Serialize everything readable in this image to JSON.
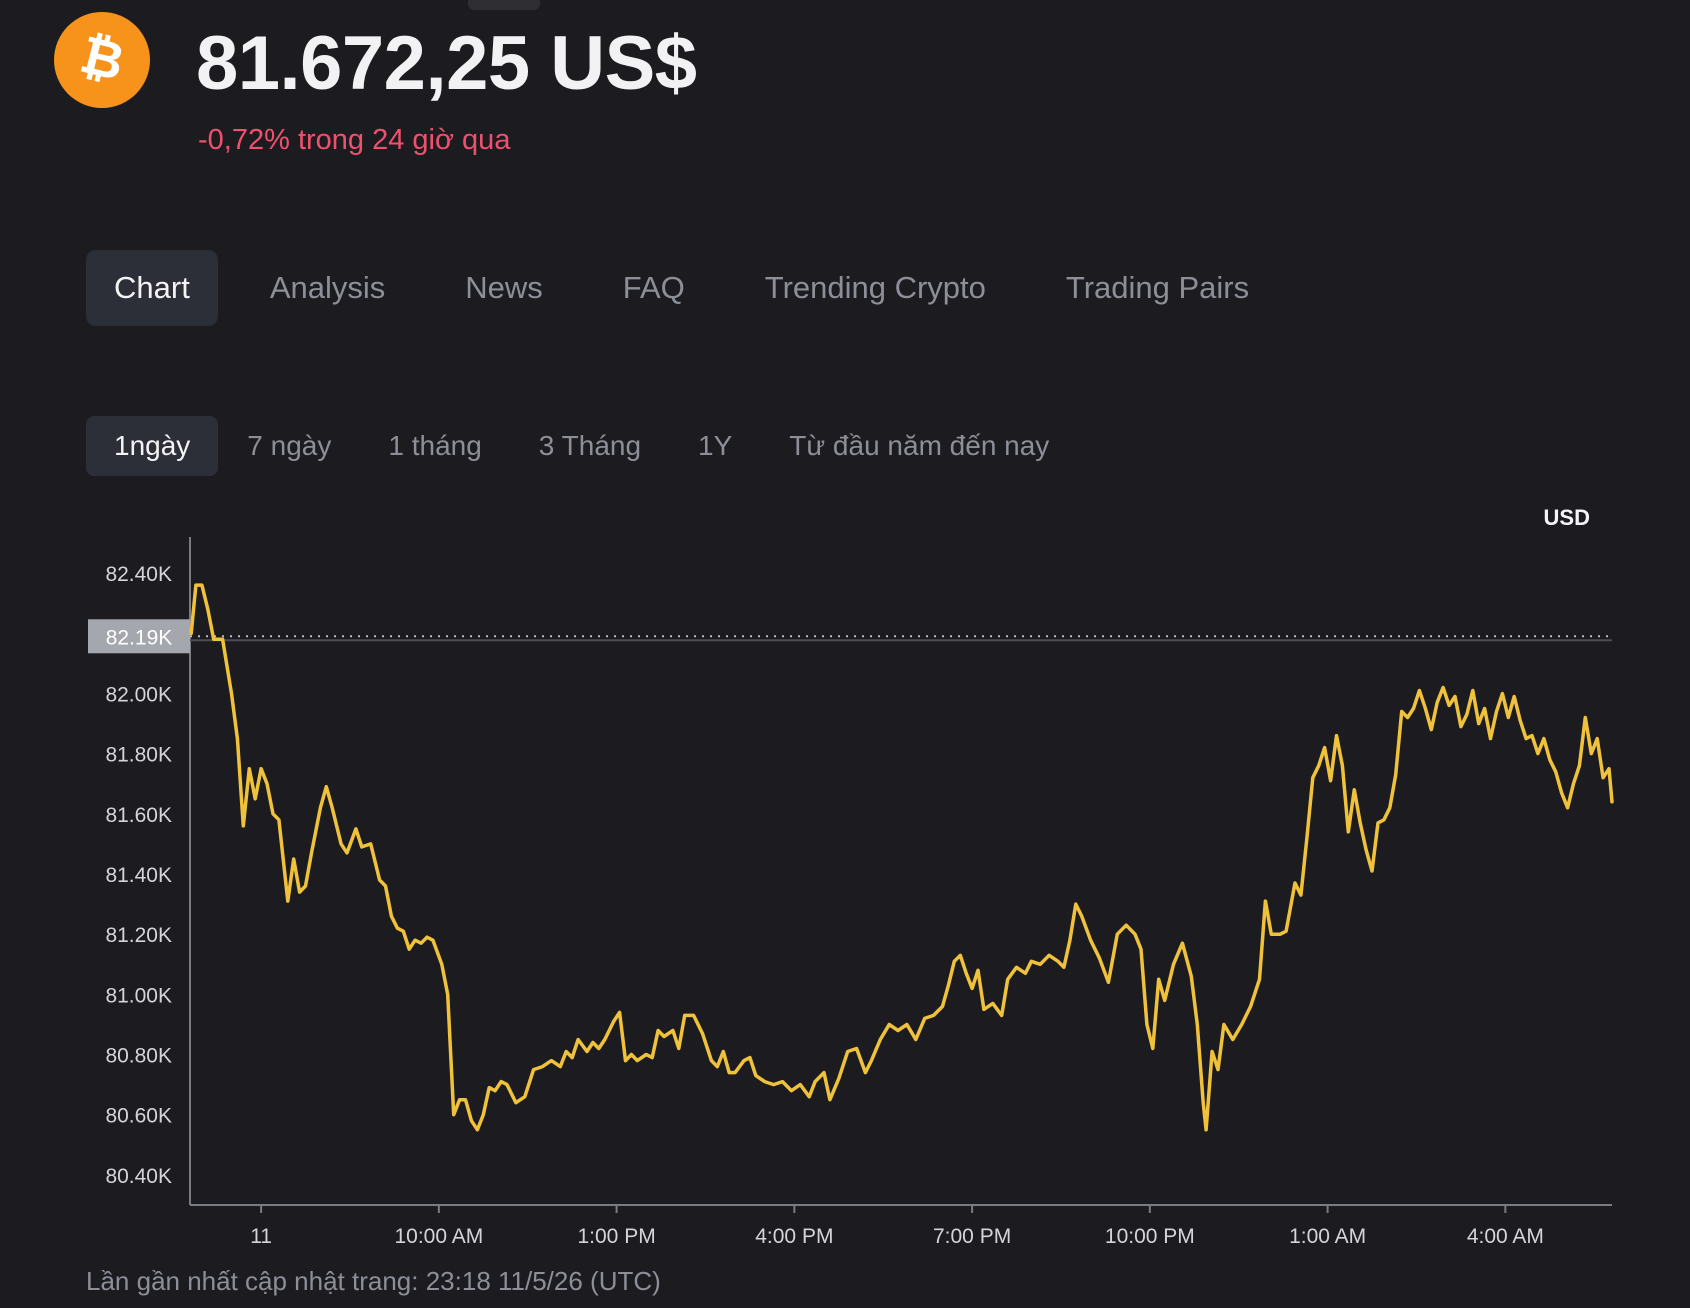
{
  "coin": {
    "logo_icon": "bitcoin-icon",
    "logo_color": "#f7931a",
    "price": "81.672,25 US$",
    "change": "-0,72% trong 24 giờ qua",
    "change_color": "#f0506e"
  },
  "tabs": [
    {
      "label": "Chart",
      "active": true
    },
    {
      "label": "Analysis",
      "active": false
    },
    {
      "label": "News",
      "active": false
    },
    {
      "label": "FAQ",
      "active": false
    },
    {
      "label": "Trending Crypto",
      "active": false
    },
    {
      "label": "Trading Pairs",
      "active": false
    }
  ],
  "ranges": [
    {
      "label": "1ngày",
      "active": true
    },
    {
      "label": "7 ngày",
      "active": false
    },
    {
      "label": "1 tháng",
      "active": false
    },
    {
      "label": "3 Tháng",
      "active": false
    },
    {
      "label": "1Y",
      "active": false
    },
    {
      "label": "Từ đầu năm đến nay",
      "active": false
    }
  ],
  "chart_data": {
    "type": "line",
    "currency_label": "USD",
    "line_color": "#f0c23c",
    "reference_value": 82190,
    "reference_label": "82.19K",
    "ylim": [
      80300,
      82520
    ],
    "y_ticks": [
      {
        "value": 82400,
        "label": "82.40K"
      },
      {
        "value": 82000,
        "label": "82.00K"
      },
      {
        "value": 81800,
        "label": "81.80K"
      },
      {
        "value": 81600,
        "label": "81.60K"
      },
      {
        "value": 81400,
        "label": "81.40K"
      },
      {
        "value": 81200,
        "label": "81.20K"
      },
      {
        "value": 81000,
        "label": "81.00K"
      },
      {
        "value": 80800,
        "label": "80.80K"
      },
      {
        "value": 80600,
        "label": "80.60K"
      },
      {
        "value": 80400,
        "label": "80.40K"
      }
    ],
    "x_start_hour": 5.8,
    "x_end_hour": 29.8,
    "x_ticks": [
      {
        "hour": 7,
        "label": "11"
      },
      {
        "hour": 10,
        "label": "10:00 AM"
      },
      {
        "hour": 13,
        "label": "1:00 PM"
      },
      {
        "hour": 16,
        "label": "4:00 PM"
      },
      {
        "hour": 19,
        "label": "7:00 PM"
      },
      {
        "hour": 22,
        "label": "10:00 PM"
      },
      {
        "hour": 25,
        "label": "1:00 AM"
      },
      {
        "hour": 28,
        "label": "4:00 AM"
      }
    ],
    "series": [
      {
        "points": [
          [
            5.82,
            82200
          ],
          [
            5.9,
            82360
          ],
          [
            6.0,
            82360
          ],
          [
            6.1,
            82280
          ],
          [
            6.2,
            82180
          ],
          [
            6.35,
            82180
          ],
          [
            6.5,
            82000
          ],
          [
            6.6,
            81850
          ],
          [
            6.7,
            81560
          ],
          [
            6.8,
            81750
          ],
          [
            6.9,
            81650
          ],
          [
            7.0,
            81750
          ],
          [
            7.1,
            81700
          ],
          [
            7.2,
            81600
          ],
          [
            7.3,
            81580
          ],
          [
            7.45,
            81310
          ],
          [
            7.55,
            81450
          ],
          [
            7.65,
            81340
          ],
          [
            7.75,
            81360
          ],
          [
            7.85,
            81470
          ],
          [
            8.0,
            81620
          ],
          [
            8.1,
            81690
          ],
          [
            8.2,
            81620
          ],
          [
            8.35,
            81500
          ],
          [
            8.45,
            81470
          ],
          [
            8.6,
            81550
          ],
          [
            8.7,
            81490
          ],
          [
            8.85,
            81500
          ],
          [
            9.0,
            81380
          ],
          [
            9.1,
            81360
          ],
          [
            9.2,
            81260
          ],
          [
            9.3,
            81220
          ],
          [
            9.4,
            81210
          ],
          [
            9.5,
            81150
          ],
          [
            9.6,
            81180
          ],
          [
            9.7,
            81170
          ],
          [
            9.8,
            81190
          ],
          [
            9.9,
            81180
          ],
          [
            10.05,
            81100
          ],
          [
            10.15,
            81000
          ],
          [
            10.25,
            80600
          ],
          [
            10.35,
            80650
          ],
          [
            10.45,
            80650
          ],
          [
            10.55,
            80580
          ],
          [
            10.65,
            80550
          ],
          [
            10.75,
            80600
          ],
          [
            10.85,
            80690
          ],
          [
            10.95,
            80680
          ],
          [
            11.05,
            80710
          ],
          [
            11.15,
            80700
          ],
          [
            11.3,
            80640
          ],
          [
            11.45,
            80660
          ],
          [
            11.6,
            80750
          ],
          [
            11.75,
            80760
          ],
          [
            11.9,
            80780
          ],
          [
            12.05,
            80760
          ],
          [
            12.15,
            80810
          ],
          [
            12.25,
            80790
          ],
          [
            12.35,
            80850
          ],
          [
            12.5,
            80810
          ],
          [
            12.6,
            80840
          ],
          [
            12.7,
            80820
          ],
          [
            12.8,
            80850
          ],
          [
            12.95,
            80910
          ],
          [
            13.05,
            80940
          ],
          [
            13.15,
            80780
          ],
          [
            13.25,
            80800
          ],
          [
            13.35,
            80780
          ],
          [
            13.5,
            80800
          ],
          [
            13.6,
            80790
          ],
          [
            13.7,
            80880
          ],
          [
            13.8,
            80860
          ],
          [
            13.95,
            80880
          ],
          [
            14.05,
            80820
          ],
          [
            14.15,
            80930
          ],
          [
            14.3,
            80930
          ],
          [
            14.45,
            80870
          ],
          [
            14.6,
            80780
          ],
          [
            14.7,
            80760
          ],
          [
            14.8,
            80810
          ],
          [
            14.9,
            80740
          ],
          [
            15.0,
            80740
          ],
          [
            15.15,
            80780
          ],
          [
            15.25,
            80790
          ],
          [
            15.35,
            80730
          ],
          [
            15.5,
            80710
          ],
          [
            15.65,
            80700
          ],
          [
            15.8,
            80710
          ],
          [
            15.95,
            80680
          ],
          [
            16.1,
            80700
          ],
          [
            16.25,
            80660
          ],
          [
            16.35,
            80710
          ],
          [
            16.5,
            80740
          ],
          [
            16.6,
            80650
          ],
          [
            16.75,
            80720
          ],
          [
            16.9,
            80810
          ],
          [
            17.05,
            80820
          ],
          [
            17.2,
            80740
          ],
          [
            17.3,
            80780
          ],
          [
            17.45,
            80850
          ],
          [
            17.6,
            80900
          ],
          [
            17.75,
            80880
          ],
          [
            17.9,
            80900
          ],
          [
            18.05,
            80850
          ],
          [
            18.2,
            80920
          ],
          [
            18.35,
            80930
          ],
          [
            18.5,
            80960
          ],
          [
            18.6,
            81030
          ],
          [
            18.7,
            81110
          ],
          [
            18.8,
            81130
          ],
          [
            18.9,
            81070
          ],
          [
            19.0,
            81020
          ],
          [
            19.1,
            81080
          ],
          [
            19.2,
            80950
          ],
          [
            19.35,
            80970
          ],
          [
            19.5,
            80930
          ],
          [
            19.6,
            81050
          ],
          [
            19.75,
            81090
          ],
          [
            19.9,
            81070
          ],
          [
            20.0,
            81110
          ],
          [
            20.15,
            81100
          ],
          [
            20.3,
            81130
          ],
          [
            20.45,
            81110
          ],
          [
            20.55,
            81090
          ],
          [
            20.65,
            81180
          ],
          [
            20.75,
            81300
          ],
          [
            20.85,
            81260
          ],
          [
            21.0,
            81180
          ],
          [
            21.15,
            81120
          ],
          [
            21.3,
            81040
          ],
          [
            21.45,
            81200
          ],
          [
            21.6,
            81230
          ],
          [
            21.75,
            81200
          ],
          [
            21.85,
            81150
          ],
          [
            21.95,
            80900
          ],
          [
            22.05,
            80820
          ],
          [
            22.15,
            81050
          ],
          [
            22.25,
            80980
          ],
          [
            22.4,
            81100
          ],
          [
            22.55,
            81170
          ],
          [
            22.7,
            81060
          ],
          [
            22.8,
            80900
          ],
          [
            22.9,
            80640
          ],
          [
            22.95,
            80550
          ],
          [
            23.05,
            80810
          ],
          [
            23.15,
            80750
          ],
          [
            23.25,
            80900
          ],
          [
            23.4,
            80850
          ],
          [
            23.55,
            80900
          ],
          [
            23.7,
            80960
          ],
          [
            23.85,
            81050
          ],
          [
            23.95,
            81310
          ],
          [
            24.05,
            81200
          ],
          [
            24.2,
            81200
          ],
          [
            24.3,
            81210
          ],
          [
            24.45,
            81370
          ],
          [
            24.55,
            81330
          ],
          [
            24.65,
            81520
          ],
          [
            24.75,
            81720
          ],
          [
            24.85,
            81760
          ],
          [
            24.95,
            81820
          ],
          [
            25.05,
            81710
          ],
          [
            25.15,
            81860
          ],
          [
            25.25,
            81760
          ],
          [
            25.35,
            81540
          ],
          [
            25.45,
            81680
          ],
          [
            25.55,
            81570
          ],
          [
            25.65,
            81480
          ],
          [
            25.75,
            81410
          ],
          [
            25.85,
            81570
          ],
          [
            25.95,
            81580
          ],
          [
            26.05,
            81620
          ],
          [
            26.15,
            81730
          ],
          [
            26.25,
            81940
          ],
          [
            26.35,
            81920
          ],
          [
            26.45,
            81950
          ],
          [
            26.55,
            82010
          ],
          [
            26.65,
            81950
          ],
          [
            26.75,
            81880
          ],
          [
            26.85,
            81970
          ],
          [
            26.95,
            82020
          ],
          [
            27.05,
            81960
          ],
          [
            27.15,
            81990
          ],
          [
            27.25,
            81890
          ],
          [
            27.35,
            81930
          ],
          [
            27.45,
            82010
          ],
          [
            27.55,
            81900
          ],
          [
            27.65,
            81950
          ],
          [
            27.75,
            81850
          ],
          [
            27.85,
            81940
          ],
          [
            27.95,
            82000
          ],
          [
            28.05,
            81920
          ],
          [
            28.15,
            81990
          ],
          [
            28.25,
            81910
          ],
          [
            28.35,
            81850
          ],
          [
            28.45,
            81860
          ],
          [
            28.55,
            81800
          ],
          [
            28.65,
            81850
          ],
          [
            28.75,
            81780
          ],
          [
            28.85,
            81740
          ],
          [
            28.95,
            81670
          ],
          [
            29.05,
            81620
          ],
          [
            29.15,
            81700
          ],
          [
            29.25,
            81760
          ],
          [
            29.35,
            81920
          ],
          [
            29.45,
            81800
          ],
          [
            29.55,
            81850
          ],
          [
            29.65,
            81720
          ],
          [
            29.75,
            81750
          ],
          [
            29.8,
            81640
          ]
        ]
      }
    ]
  },
  "footer": {
    "updated": "Lần gần nhất cập nhật trang: 23:18 11/5/26 (UTC)"
  }
}
